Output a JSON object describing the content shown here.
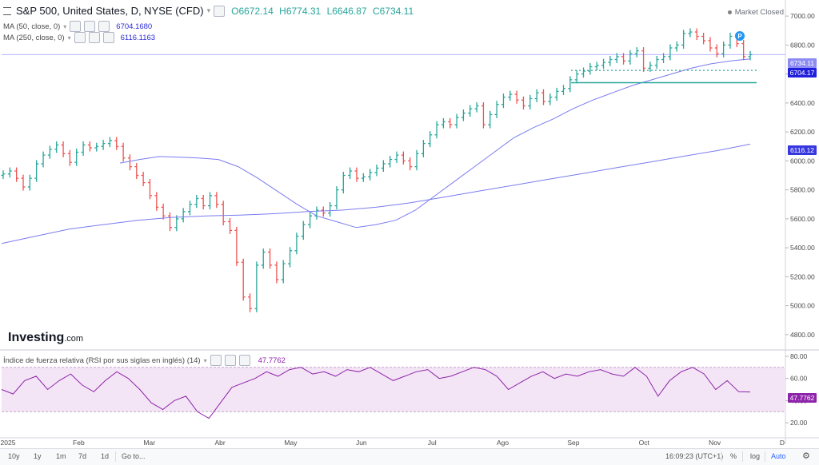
{
  "header": {
    "title": "S&P 500, United States, D, NYSE (CFD)",
    "open": "O6672.14",
    "high": "H6774.31",
    "low": "L6646.87",
    "close": "C6734.11",
    "market_status": "Market Closed"
  },
  "ma50": {
    "label": "MA (50, close, 0)",
    "value": "6704.1680",
    "badge": "6704.17"
  },
  "ma250": {
    "label": "MA (250, close, 0)",
    "value": "6116.1163",
    "badge": "6116.12"
  },
  "price_badge": "6734.11",
  "rsi": {
    "label": "Índice de fuerza relativa (RSI por sus siglas en inglés) (14)",
    "value": "47.7762",
    "badge": "47.7762"
  },
  "logo": {
    "brand": "Investing",
    "suffix": ".com"
  },
  "toolbar": {
    "ranges": [
      "10y",
      "1y",
      "1m",
      "7d",
      "1d"
    ],
    "goto": "Go to...",
    "time": "16:09:23 (UTC+1)",
    "percent": "%",
    "log": "log",
    "auto": "Auto"
  },
  "colors": {
    "up": "#26a69a",
    "down": "#ef5350",
    "ma": "#7b7bf0",
    "rsi": "#8e24aa",
    "rsi_band": "#f3e5f5",
    "support": "#26a69a",
    "price_line": "#b3b3ff"
  },
  "chart_data": {
    "type": "line",
    "title": "S&P 500, United States, D, NYSE (CFD)",
    "price_axis": {
      "ticks": [
        4800,
        5000,
        5200,
        5400,
        5600,
        5800,
        6000,
        6200,
        6400,
        6600,
        6800,
        7000
      ],
      "range": [
        4700,
        7100
      ]
    },
    "x_ticks": [
      "2025",
      "Feb",
      "Mar",
      "Abr",
      "May",
      "Jun",
      "Jul",
      "Ago",
      "Sep",
      "Oct",
      "Nov",
      "D"
    ],
    "rsi_axis": {
      "ticks": [
        20,
        40,
        60,
        80
      ],
      "band": [
        30,
        70
      ]
    },
    "series": [
      {
        "name": "MA (50, close, 0)",
        "values": [
          5985,
          6010,
          6030,
          6025,
          6020,
          6010,
          5960,
          5880,
          5790,
          5700,
          5620,
          5580,
          5540,
          5560,
          5590,
          5660,
          5760,
          5860,
          5960,
          6060,
          6160,
          6230,
          6290,
          6360,
          6420,
          6470,
          6520,
          6560,
          6600,
          6640,
          6670,
          6690,
          6704
        ]
      },
      {
        "name": "MA (250, close, 0)",
        "values": [
          5430,
          5480,
          5530,
          5560,
          5590,
          5610,
          5620,
          5625,
          5635,
          5650,
          5660,
          5680,
          5710,
          5750,
          5790,
          5830,
          5870,
          5910,
          5950,
          5990,
          6030,
          6070,
          6116
        ]
      },
      {
        "name": "Índice de fuerza relativa (RSI por sus siglas en inglés) (14)",
        "values": [
          50,
          46,
          58,
          62,
          50,
          58,
          64,
          54,
          48,
          58,
          66,
          60,
          50,
          38,
          32,
          40,
          44,
          30,
          24,
          38,
          52,
          56,
          60,
          66,
          62,
          68,
          70,
          64,
          66,
          62,
          68,
          66,
          70,
          64,
          58,
          62,
          66,
          68,
          60,
          62,
          66,
          70,
          68,
          62,
          50,
          56,
          62,
          66,
          60,
          64,
          62,
          66,
          68,
          64,
          62,
          70,
          62,
          44,
          58,
          66,
          70,
          64,
          50,
          58,
          48,
          47.78
        ]
      }
    ],
    "price_path": [
      5910,
      5930,
      5880,
      5820,
      5880,
      5980,
      6040,
      6080,
      6110,
      6050,
      5990,
      6060,
      6110,
      6090,
      6100,
      6120,
      6140,
      6100,
      6020,
      5960,
      5900,
      5850,
      5760,
      5680,
      5620,
      5540,
      5600,
      5650,
      5700,
      5740,
      5690,
      5760,
      5700,
      5580,
      5520,
      5300,
      5060,
      4980,
      5280,
      5370,
      5280,
      5180,
      5290,
      5380,
      5480,
      5560,
      5620,
      5660,
      5640,
      5690,
      5800,
      5900,
      5930,
      5880,
      5890,
      5920,
      5950,
      5980,
      6010,
      6040,
      6000,
      5960,
      6050,
      6120,
      6180,
      6250,
      6270,
      6250,
      6300,
      6330,
      6360,
      6380,
      6250,
      6320,
      6390,
      6440,
      6460,
      6420,
      6380,
      6430,
      6470,
      6410,
      6440,
      6480,
      6500,
      6560,
      6600,
      6620,
      6650,
      6660,
      6680,
      6700,
      6720,
      6690,
      6740,
      6760,
      6640,
      6660,
      6700,
      6720,
      6780,
      6800,
      6880,
      6890,
      6860,
      6830,
      6780,
      6740,
      6800,
      6860,
      6810,
      6720,
      6734
    ]
  }
}
